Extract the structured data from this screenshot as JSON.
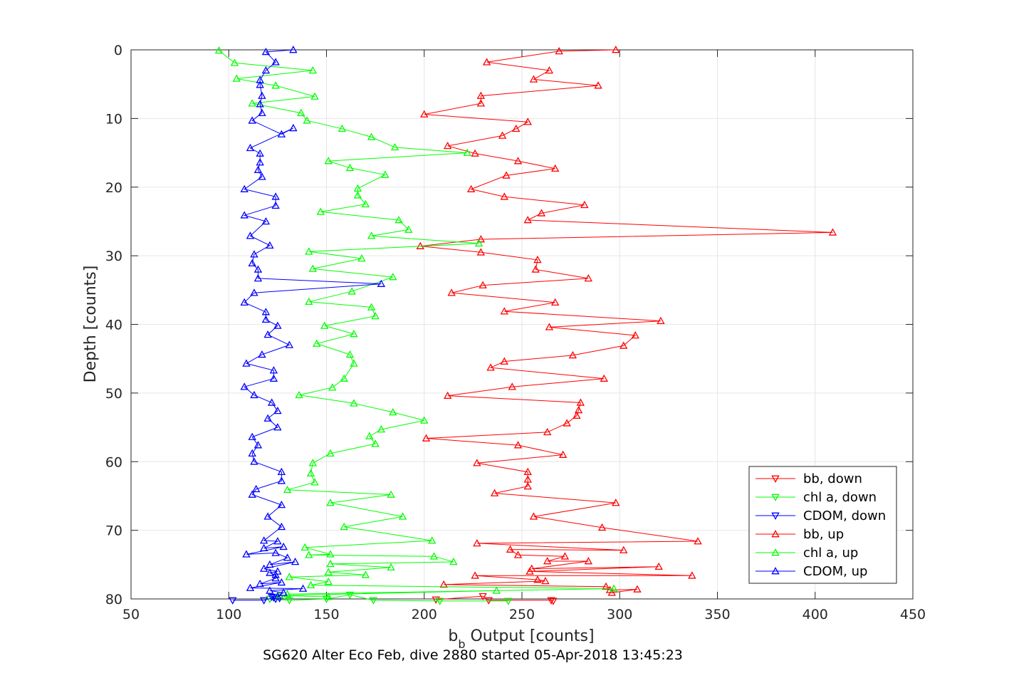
{
  "chart_data": {
    "type": "line",
    "title": "SG620 Alter Eco Feb, dive 2880 started 05-Apr-2018 13:45:23",
    "xlabel": {
      "main": "b",
      "sub": "b",
      "suffix": " Output [counts]"
    },
    "ylabel": "Depth [counts]",
    "xlim": [
      50,
      450
    ],
    "ylim": [
      0,
      80
    ],
    "y_reversed": true,
    "grid": true,
    "legend_position": "bottom-right",
    "xticks": [
      "50",
      "100",
      "150",
      "200",
      "250",
      "300",
      "350",
      "400",
      "450"
    ],
    "yticks": [
      "0",
      "10",
      "20",
      "30",
      "40",
      "50",
      "60",
      "70",
      "80"
    ],
    "series": [
      {
        "name": "bb, down",
        "color": "#ff0000",
        "marker": "triangle-down",
        "points": [
          [
            206,
            80.1
          ],
          [
            230,
            79.6
          ],
          [
            233,
            80.2
          ],
          [
            265,
            80.2
          ],
          [
            266,
            80.3
          ]
        ]
      },
      {
        "name": "chl a, down",
        "color": "#00ff00",
        "marker": "triangle-down",
        "points": [
          [
            121,
            80.0
          ],
          [
            131,
            80.2
          ],
          [
            150,
            80.0
          ],
          [
            162,
            79.4
          ],
          [
            174,
            80.2
          ],
          [
            208,
            80.3
          ],
          [
            243,
            80.3
          ]
        ]
      },
      {
        "name": "CDOM, down",
        "color": "#0000ff",
        "marker": "triangle-down",
        "points": [
          [
            102,
            80.2
          ],
          [
            118,
            80.2
          ],
          [
            123,
            79.8
          ],
          [
            126,
            79.9
          ],
          [
            124,
            80.0
          ],
          [
            122,
            79.7
          ]
        ]
      },
      {
        "name": "bb, up",
        "color": "#ff0000",
        "marker": "triangle-up",
        "points": [
          [
            298,
            0.0
          ],
          [
            269,
            0.2
          ],
          [
            232,
            1.8
          ],
          [
            264,
            3.0
          ],
          [
            256,
            4.3
          ],
          [
            289,
            5.2
          ],
          [
            229,
            6.7
          ],
          [
            229,
            7.8
          ],
          [
            200,
            9.4
          ],
          [
            253,
            10.5
          ],
          [
            247,
            11.5
          ],
          [
            240,
            12.5
          ],
          [
            212,
            14.0
          ],
          [
            226,
            15.1
          ],
          [
            248,
            16.2
          ],
          [
            267,
            17.3
          ],
          [
            242,
            18.3
          ],
          [
            224,
            20.3
          ],
          [
            241,
            21.4
          ],
          [
            282,
            22.6
          ],
          [
            260,
            23.8
          ],
          [
            253,
            24.8
          ],
          [
            409,
            26.6
          ],
          [
            229,
            27.6
          ],
          [
            198,
            28.6
          ],
          [
            229,
            29.5
          ],
          [
            258,
            30.6
          ],
          [
            257,
            32.0
          ],
          [
            284,
            33.3
          ],
          [
            230,
            34.3
          ],
          [
            214,
            35.4
          ],
          [
            267,
            36.8
          ],
          [
            241,
            38.1
          ],
          [
            321,
            39.5
          ],
          [
            264,
            40.4
          ],
          [
            308,
            41.6
          ],
          [
            302,
            43.1
          ],
          [
            276,
            44.5
          ],
          [
            241,
            45.4
          ],
          [
            234,
            46.3
          ],
          [
            292,
            47.9
          ],
          [
            245,
            49.1
          ],
          [
            212,
            50.4
          ],
          [
            280,
            51.4
          ],
          [
            279,
            52.5
          ],
          [
            278,
            53.3
          ],
          [
            273,
            54.4
          ],
          [
            263,
            55.7
          ],
          [
            201,
            56.6
          ],
          [
            248,
            57.6
          ],
          [
            271,
            59.0
          ],
          [
            227,
            60.2
          ],
          [
            253,
            61.5
          ],
          [
            253,
            62.6
          ],
          [
            253,
            63.6
          ],
          [
            236,
            64.6
          ],
          [
            298,
            66.0
          ],
          [
            256,
            68.0
          ],
          [
            291,
            69.6
          ],
          [
            340,
            71.6
          ],
          [
            227,
            71.9
          ],
          [
            302,
            72.9
          ],
          [
            244,
            72.8
          ],
          [
            248,
            73.6
          ],
          [
            272,
            73.8
          ],
          [
            263,
            74.5
          ],
          [
            284,
            74.5
          ],
          [
            255,
            75.6
          ],
          [
            320,
            75.3
          ],
          [
            254,
            76.0
          ],
          [
            337,
            76.6
          ],
          [
            226,
            76.6
          ],
          [
            258,
            77.2
          ],
          [
            262,
            77.4
          ],
          [
            210,
            77.9
          ],
          [
            293,
            78.2
          ],
          [
            295,
            78.7
          ],
          [
            309,
            78.6
          ],
          [
            296,
            79.1
          ]
        ]
      },
      {
        "name": "chl a, up",
        "color": "#00ff00",
        "marker": "triangle-up",
        "points": [
          [
            95,
            0.1
          ],
          [
            103,
            1.9
          ],
          [
            143,
            3.0
          ],
          [
            104,
            4.2
          ],
          [
            124,
            5.2
          ],
          [
            144,
            6.8
          ],
          [
            112,
            7.8
          ],
          [
            137,
            9.2
          ],
          [
            140,
            10.3
          ],
          [
            158,
            11.5
          ],
          [
            173,
            12.7
          ],
          [
            185,
            14.2
          ],
          [
            222,
            15.0
          ],
          [
            151,
            16.2
          ],
          [
            162,
            17.2
          ],
          [
            180,
            18.2
          ],
          [
            166,
            20.2
          ],
          [
            166,
            21.2
          ],
          [
            170,
            22.5
          ],
          [
            147,
            23.6
          ],
          [
            187,
            24.8
          ],
          [
            192,
            26.2
          ],
          [
            173,
            27.1
          ],
          [
            228,
            28.2
          ],
          [
            141,
            29.4
          ],
          [
            168,
            30.4
          ],
          [
            143,
            31.9
          ],
          [
            184,
            33.1
          ],
          [
            163,
            35.2
          ],
          [
            141,
            36.7
          ],
          [
            173,
            37.5
          ],
          [
            175,
            38.8
          ],
          [
            149,
            40.2
          ],
          [
            164,
            41.4
          ],
          [
            145,
            42.8
          ],
          [
            162,
            44.4
          ],
          [
            164,
            45.7
          ],
          [
            159,
            47.9
          ],
          [
            153,
            49.2
          ],
          [
            136,
            50.3
          ],
          [
            164,
            51.5
          ],
          [
            184,
            52.8
          ],
          [
            200,
            54.0
          ],
          [
            178,
            55.3
          ],
          [
            172,
            56.3
          ],
          [
            175,
            57.4
          ],
          [
            152,
            58.8
          ],
          [
            143,
            60.2
          ],
          [
            142,
            61.7
          ],
          [
            144,
            63.0
          ],
          [
            130,
            64.1
          ],
          [
            183,
            64.8
          ],
          [
            152,
            66.0
          ],
          [
            189,
            68.0
          ],
          [
            159,
            69.5
          ],
          [
            204,
            71.5
          ],
          [
            139,
            72.5
          ],
          [
            152,
            73.5
          ],
          [
            141,
            73.6
          ],
          [
            205,
            73.8
          ],
          [
            215,
            74.6
          ],
          [
            152,
            74.9
          ],
          [
            183,
            75.4
          ],
          [
            151,
            76.1
          ],
          [
            170,
            76.5
          ],
          [
            131,
            76.8
          ],
          [
            151,
            77.5
          ],
          [
            142,
            78.0
          ],
          [
            297,
            78.5
          ],
          [
            130,
            79.3
          ],
          [
            237,
            78.8
          ],
          [
            126,
            79.5
          ],
          [
            151,
            79.7
          ]
        ]
      },
      {
        "name": "CDOM, up",
        "color": "#0000ff",
        "marker": "triangle-up",
        "points": [
          [
            133,
            0.0
          ],
          [
            119,
            0.3
          ],
          [
            124,
            1.8
          ],
          [
            119,
            3.0
          ],
          [
            116,
            4.4
          ],
          [
            116,
            5.1
          ],
          [
            117,
            6.7
          ],
          [
            116,
            7.9
          ],
          [
            117,
            9.2
          ],
          [
            112,
            10.3
          ],
          [
            127,
            12.3
          ],
          [
            133,
            11.4
          ],
          [
            111,
            14.3
          ],
          [
            116,
            15.1
          ],
          [
            116,
            16.4
          ],
          [
            115,
            17.5
          ],
          [
            117,
            18.5
          ],
          [
            108,
            20.3
          ],
          [
            124,
            21.4
          ],
          [
            124,
            22.7
          ],
          [
            108,
            24.1
          ],
          [
            119,
            25.0
          ],
          [
            111,
            27.1
          ],
          [
            121,
            28.5
          ],
          [
            113,
            29.8
          ],
          [
            112,
            31.1
          ],
          [
            115,
            32.0
          ],
          [
            115,
            33.3
          ],
          [
            178,
            34.1
          ],
          [
            113,
            35.4
          ],
          [
            108,
            36.8
          ],
          [
            119,
            38.2
          ],
          [
            119,
            39.3
          ],
          [
            125,
            40.2
          ],
          [
            120,
            41.5
          ],
          [
            131,
            43.0
          ],
          [
            117,
            44.4
          ],
          [
            109,
            45.7
          ],
          [
            123,
            46.7
          ],
          [
            123,
            47.9
          ],
          [
            108,
            49.1
          ],
          [
            113,
            50.3
          ],
          [
            122,
            51.4
          ],
          [
            125,
            52.6
          ],
          [
            120,
            53.7
          ],
          [
            125,
            55.0
          ],
          [
            112,
            56.4
          ],
          [
            115,
            57.6
          ],
          [
            112,
            58.8
          ],
          [
            113,
            60.0
          ],
          [
            127,
            61.5
          ],
          [
            127,
            62.8
          ],
          [
            114,
            64.0
          ],
          [
            112,
            64.8
          ],
          [
            127,
            66.3
          ],
          [
            120,
            68.0
          ],
          [
            127,
            69.5
          ],
          [
            118,
            71.5
          ],
          [
            125,
            71.6
          ],
          [
            118,
            72.6
          ],
          [
            128,
            72.4
          ],
          [
            109,
            73.5
          ],
          [
            124,
            73.3
          ],
          [
            130,
            74.0
          ],
          [
            121,
            75.0
          ],
          [
            134,
            74.6
          ],
          [
            118,
            75.6
          ],
          [
            125,
            76.0
          ],
          [
            121,
            76.2
          ],
          [
            124,
            76.5
          ],
          [
            124,
            77.0
          ],
          [
            116,
            77.8
          ],
          [
            127,
            77.6
          ],
          [
            111,
            78.4
          ],
          [
            138,
            78.5
          ],
          [
            121,
            78.8
          ],
          [
            128,
            79.1
          ],
          [
            125,
            79.6
          ]
        ]
      }
    ]
  }
}
